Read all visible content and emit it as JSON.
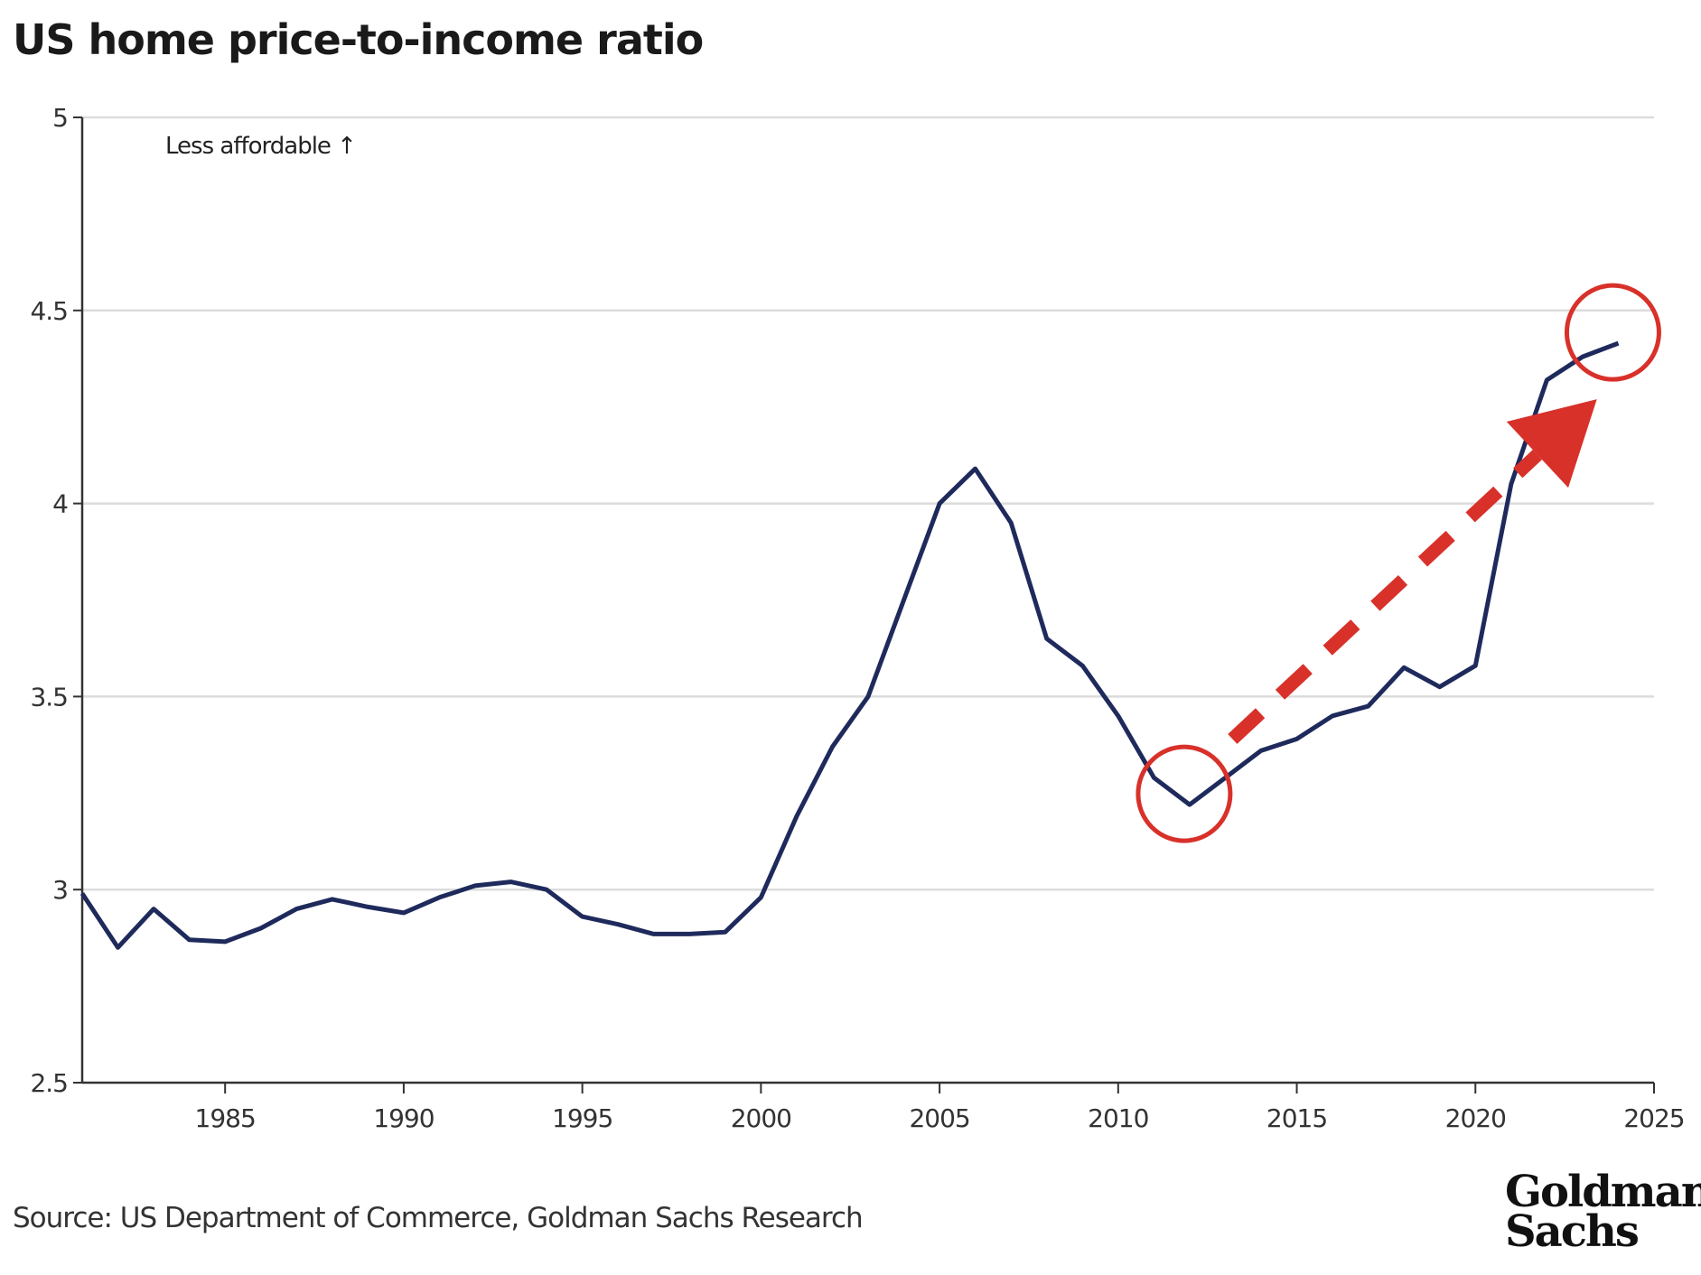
{
  "chart_data": {
    "type": "line",
    "title": "US home price-to-income ratio",
    "xlabel": "",
    "ylabel": "",
    "xlim": [
      1981,
      2025
    ],
    "ylim": [
      2.5,
      5
    ],
    "x_ticks": [
      1985,
      1990,
      1995,
      2000,
      2005,
      2010,
      2015,
      2020,
      2025
    ],
    "y_ticks": [
      2.5,
      3,
      3.5,
      4,
      4.5,
      5
    ],
    "x_tick_labels": [
      "1985",
      "1990",
      "1995",
      "2000",
      "2005",
      "2010",
      "2015",
      "2020",
      "2025"
    ],
    "y_tick_labels": [
      "2.5",
      "3",
      "3.5",
      "4",
      "4.5",
      "5"
    ],
    "grid": "horizontal",
    "series": [
      {
        "name": "US home price-to-income ratio",
        "color": "#1f2a5c",
        "x": [
          1981,
          1982,
          1983,
          1984,
          1985,
          1986,
          1987,
          1988,
          1989,
          1990,
          1991,
          1992,
          1993,
          1994,
          1995,
          1996,
          1997,
          1998,
          1999,
          2000,
          2001,
          2002,
          2003,
          2004,
          2005,
          2006,
          2007,
          2008,
          2009,
          2010,
          2011,
          2012,
          2013,
          2014,
          2015,
          2016,
          2017,
          2018,
          2019,
          2020,
          2021,
          2022,
          2023,
          2024
        ],
        "values": [
          2.99,
          2.85,
          2.95,
          2.87,
          2.865,
          2.9,
          2.95,
          2.975,
          2.955,
          2.94,
          2.98,
          3.01,
          3.02,
          3.0,
          2.93,
          2.91,
          2.885,
          2.885,
          2.89,
          2.98,
          3.19,
          3.37,
          3.5,
          3.75,
          4.0,
          4.09,
          3.95,
          3.65,
          3.58,
          3.45,
          3.29,
          3.22,
          3.29,
          3.36,
          3.39,
          3.45,
          3.475,
          3.575,
          3.525,
          3.58,
          4.05,
          4.32,
          4.38,
          4.415
        ]
      }
    ],
    "annotations": {
      "less_affordable": "Less affordable ↑",
      "highlight_circles": [
        {
          "x": 2012,
          "y": 3.22
        },
        {
          "x": 2024,
          "y": 4.415
        }
      ],
      "arrow": {
        "from": [
          2013.2,
          3.39
        ],
        "to": [
          2023.4,
          4.27
        ]
      },
      "highlight_color": "#d8312a"
    },
    "source": "Source: US Department of Commerce, Goldman Sachs Research",
    "logo": [
      "Goldman",
      "Sachs"
    ]
  }
}
